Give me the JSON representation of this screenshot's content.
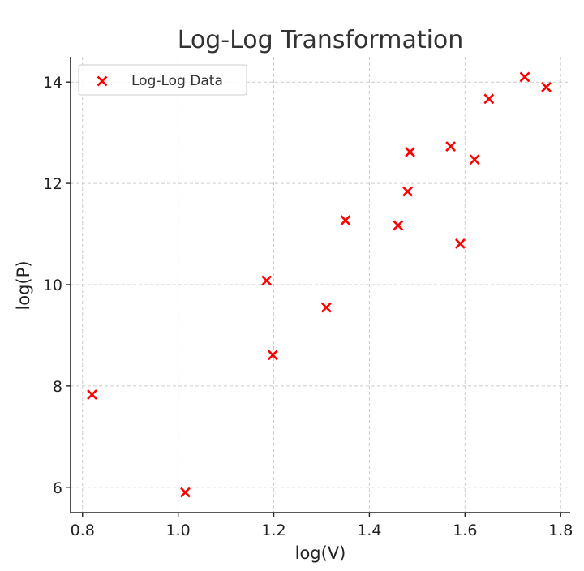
{
  "chart_data": {
    "type": "scatter",
    "title": "Log-Log Transformation",
    "xlabel": "log(V)",
    "ylabel": "log(P)",
    "xlim": [
      0.775,
      1.82
    ],
    "ylim": [
      5.5,
      14.5
    ],
    "xticks": [
      0.8,
      1.0,
      1.2,
      1.4,
      1.6,
      1.8
    ],
    "yticks": [
      6,
      8,
      10,
      12,
      14
    ],
    "xtick_labels": [
      "0.8",
      "1.0",
      "1.2",
      "1.4",
      "1.6",
      "1.8"
    ],
    "ytick_labels": [
      "6",
      "8",
      "10",
      "12",
      "14"
    ],
    "grid": true,
    "legend_position": "top-left",
    "marker_color": "#ff0000",
    "series": [
      {
        "name": "Log-Log Data",
        "marker": "x",
        "points": [
          {
            "x": 0.82,
            "y": 7.83
          },
          {
            "x": 1.015,
            "y": 5.9
          },
          {
            "x": 1.185,
            "y": 10.08
          },
          {
            "x": 1.198,
            "y": 8.61
          },
          {
            "x": 1.31,
            "y": 9.55
          },
          {
            "x": 1.35,
            "y": 11.27
          },
          {
            "x": 1.46,
            "y": 11.17
          },
          {
            "x": 1.48,
            "y": 11.84
          },
          {
            "x": 1.485,
            "y": 12.62
          },
          {
            "x": 1.57,
            "y": 12.73
          },
          {
            "x": 1.59,
            "y": 10.81
          },
          {
            "x": 1.62,
            "y": 12.47
          },
          {
            "x": 1.65,
            "y": 13.67
          },
          {
            "x": 1.725,
            "y": 14.1
          },
          {
            "x": 1.77,
            "y": 13.9
          }
        ]
      }
    ]
  }
}
